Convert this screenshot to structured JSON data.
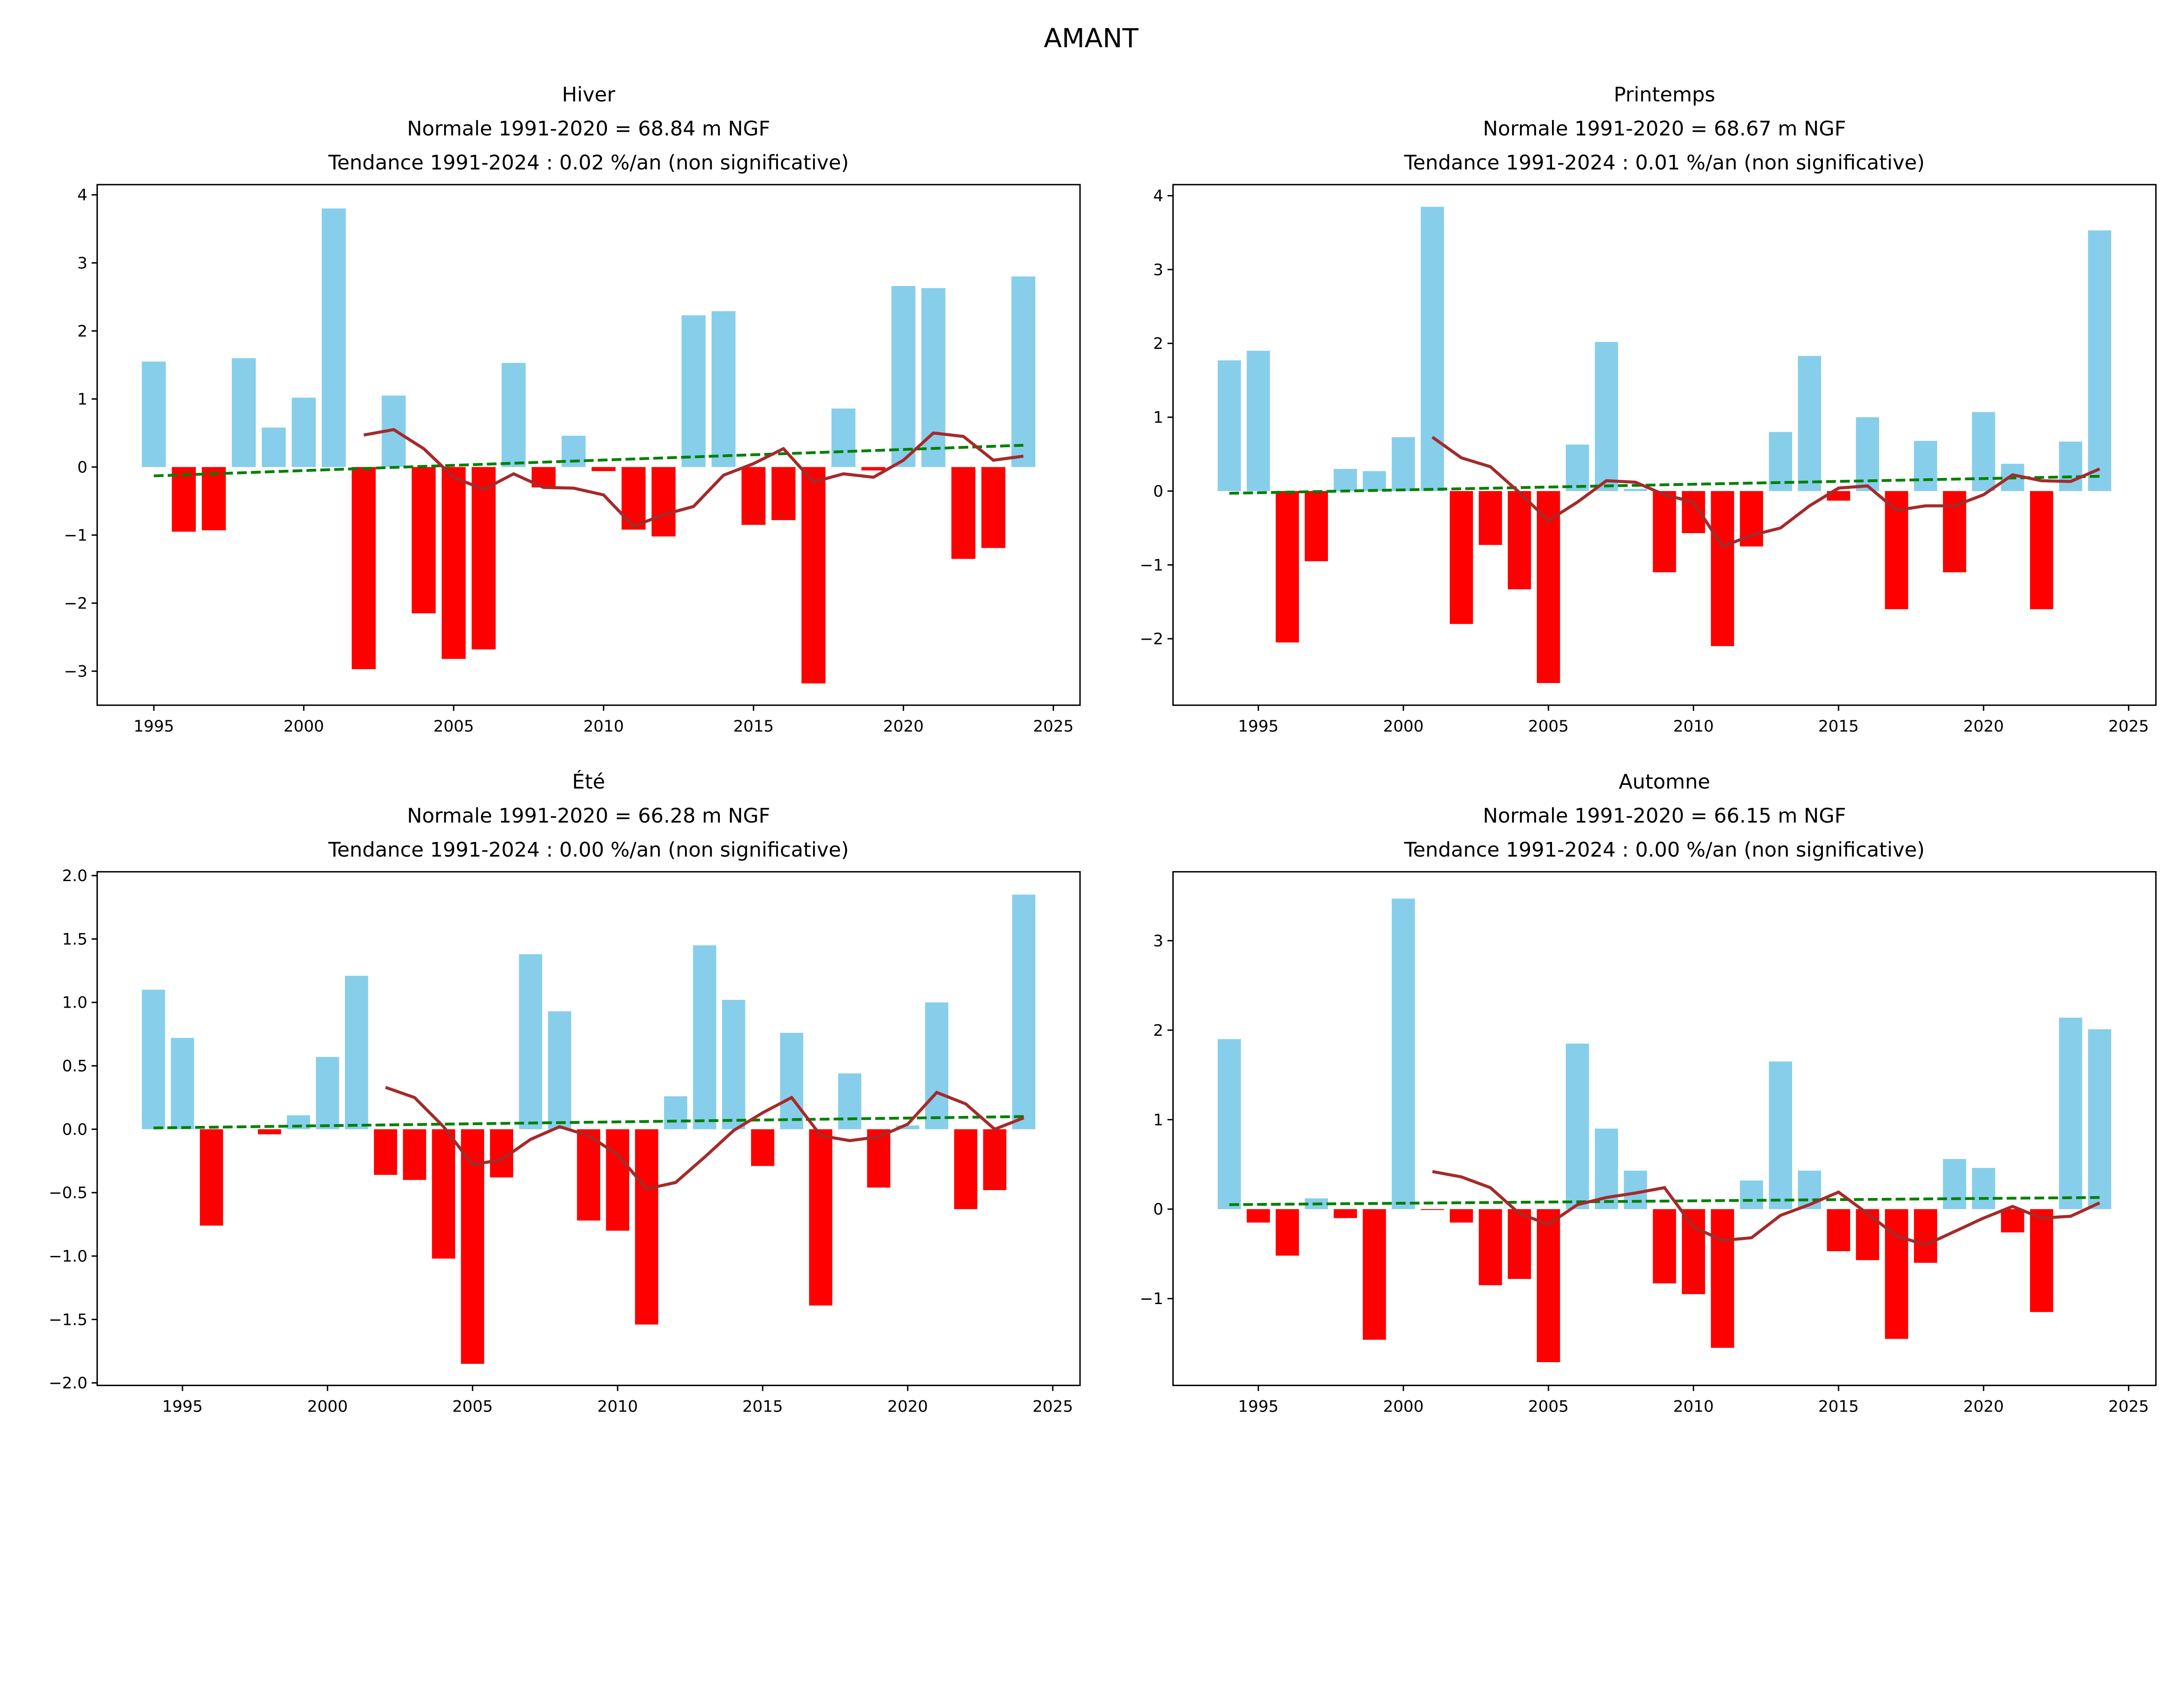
{
  "suptitle": "AMANT",
  "colors": {
    "positive": "#87CEEB",
    "negative": "#FF0000",
    "moving_average": "#A52A2A",
    "trend": "#008000"
  },
  "chart_data": [
    {
      "type": "bar",
      "title_lines": [
        "Hiver",
        "Normale 1991-2020 = 68.84 m NGF",
        "Tendance 1991-2024 : 0.02 %/an (non significative)"
      ],
      "years": [
        1995,
        1996,
        1997,
        1998,
        1999,
        2000,
        2001,
        2002,
        2003,
        2004,
        2005,
        2006,
        2007,
        2008,
        2009,
        2010,
        2011,
        2012,
        2013,
        2014,
        2015,
        2016,
        2017,
        2018,
        2019,
        2020,
        2021,
        2022,
        2023,
        2024
      ],
      "values": [
        1.55,
        -0.95,
        -0.93,
        1.6,
        0.58,
        1.02,
        3.8,
        -2.97,
        1.05,
        -2.15,
        -2.82,
        -2.68,
        1.53,
        -0.3,
        0.46,
        -0.06,
        -0.92,
        -1.02,
        2.23,
        2.29,
        -0.85,
        -0.78,
        -3.18,
        0.86,
        -0.05,
        2.66,
        2.63,
        -1.35,
        -1.19,
        2.8
      ],
      "moving_average": {
        "years": [
          2002,
          2003,
          2004,
          2005,
          2006,
          2007,
          2008,
          2009,
          2010,
          2011,
          2012,
          2013,
          2014,
          2015,
          2016,
          2017,
          2018,
          2019,
          2020,
          2021,
          2022,
          2023,
          2024
        ],
        "values": [
          0.47,
          0.55,
          0.27,
          -0.15,
          -0.33,
          -0.1,
          -0.3,
          -0.31,
          -0.41,
          -0.87,
          -0.7,
          -0.58,
          -0.12,
          0.05,
          0.27,
          -0.22,
          -0.1,
          -0.15,
          0.1,
          0.5,
          0.45,
          0.1,
          0.16
        ]
      },
      "trend": {
        "years": [
          1995,
          2024
        ],
        "values": [
          -0.13,
          0.32
        ]
      },
      "ylim": [
        -3.5,
        4.15
      ],
      "yticks": [
        -3,
        -2,
        -1,
        0,
        1,
        2,
        3,
        4
      ],
      "xticks": [
        1995,
        2000,
        2005,
        2010,
        2015,
        2020,
        2025
      ]
    },
    {
      "type": "bar",
      "title_lines": [
        "Printemps",
        "Normale 1991-2020 = 68.67 m NGF",
        "Tendance 1991-2024 : 0.01 %/an (non significative)"
      ],
      "years": [
        1994,
        1995,
        1996,
        1997,
        1998,
        1999,
        2000,
        2001,
        2002,
        2003,
        2004,
        2005,
        2006,
        2007,
        2008,
        2009,
        2010,
        2011,
        2012,
        2013,
        2014,
        2015,
        2016,
        2017,
        2018,
        2019,
        2020,
        2021,
        2022,
        2023,
        2024
      ],
      "values": [
        1.77,
        1.9,
        -2.05,
        -0.95,
        0.3,
        0.27,
        0.73,
        3.85,
        -1.8,
        -0.73,
        -1.33,
        -2.6,
        0.63,
        2.02,
        0.03,
        -1.1,
        -0.57,
        -2.1,
        -0.75,
        0.8,
        1.83,
        -0.13,
        1.0,
        -1.6,
        0.68,
        -1.1,
        1.07,
        0.37,
        -1.6,
        0.67,
        3.53
      ],
      "moving_average": {
        "years": [
          2001,
          2002,
          2003,
          2004,
          2005,
          2006,
          2007,
          2008,
          2009,
          2010,
          2011,
          2012,
          2013,
          2014,
          2015,
          2016,
          2017,
          2018,
          2019,
          2020,
          2021,
          2022,
          2023,
          2024
        ],
        "values": [
          0.73,
          0.45,
          0.33,
          -0.02,
          -0.4,
          -0.15,
          0.14,
          0.12,
          -0.05,
          -0.15,
          -0.75,
          -0.6,
          -0.5,
          -0.2,
          0.04,
          0.07,
          -0.26,
          -0.2,
          -0.2,
          -0.05,
          0.22,
          0.14,
          0.13,
          0.3
        ]
      },
      "trend": {
        "years": [
          1994,
          2024
        ],
        "values": [
          -0.03,
          0.2
        ]
      },
      "ylim": [
        -2.9,
        4.15
      ],
      "yticks": [
        -2,
        -1,
        0,
        1,
        2,
        3,
        4
      ],
      "xticks": [
        1995,
        2000,
        2005,
        2010,
        2015,
        2020,
        2025
      ]
    },
    {
      "type": "bar",
      "title_lines": [
        "Été",
        "Normale 1991-2020 = 66.28 m NGF",
        "Tendance 1991-2024 : 0.00 %/an (non significative)"
      ],
      "years": [
        1994,
        1995,
        1996,
        1997,
        1998,
        1999,
        2000,
        2001,
        2002,
        2003,
        2004,
        2005,
        2006,
        2007,
        2008,
        2009,
        2010,
        2011,
        2012,
        2013,
        2014,
        2015,
        2016,
        2017,
        2018,
        2019,
        2020,
        2021,
        2022,
        2023,
        2024
      ],
      "values": [
        1.1,
        0.72,
        -0.76,
        0,
        -0.04,
        0.11,
        0.57,
        1.21,
        -0.36,
        -0.4,
        -1.02,
        -1.85,
        -0.38,
        1.38,
        0.93,
        -0.72,
        -0.8,
        -1.54,
        0.26,
        1.45,
        1.02,
        -0.29,
        0.76,
        -1.39,
        0.44,
        -0.46,
        0.03,
        1.0,
        -0.63,
        -0.48,
        1.85
      ],
      "moving_average": {
        "years": [
          2002,
          2003,
          2004,
          2005,
          2006,
          2007,
          2008,
          2009,
          2010,
          2011,
          2012,
          2013,
          2014,
          2015,
          2016,
          2017,
          2018,
          2019,
          2020,
          2021,
          2022,
          2023,
          2024
        ],
        "values": [
          0.33,
          0.25,
          0.02,
          -0.28,
          -0.24,
          -0.08,
          0.02,
          -0.05,
          -0.2,
          -0.47,
          -0.42,
          -0.22,
          -0.01,
          0.13,
          0.25,
          -0.05,
          -0.09,
          -0.06,
          0.04,
          0.29,
          0.2,
          0.0,
          0.09
        ]
      },
      "trend": {
        "years": [
          1994,
          2024
        ],
        "values": [
          0.01,
          0.1
        ]
      },
      "ylim": [
        -2.02,
        2.03
      ],
      "yticks": [
        -2.0,
        -1.5,
        -1.0,
        -0.5,
        0.0,
        0.5,
        1.0,
        1.5,
        2.0
      ],
      "xticks": [
        1995,
        2000,
        2005,
        2010,
        2015,
        2020,
        2025
      ]
    },
    {
      "type": "bar",
      "title_lines": [
        "Automne",
        "Normale 1991-2020 = 66.15 m NGF",
        "Tendance 1991-2024 : 0.00 %/an (non significative)"
      ],
      "years": [
        1994,
        1995,
        1996,
        1997,
        1998,
        1999,
        2000,
        2001,
        2002,
        2003,
        2004,
        2005,
        2006,
        2007,
        2008,
        2009,
        2010,
        2011,
        2012,
        2013,
        2014,
        2015,
        2016,
        2017,
        2018,
        2019,
        2020,
        2021,
        2022,
        2023,
        2024
      ],
      "values": [
        1.9,
        -0.15,
        -0.52,
        0.12,
        -0.1,
        -1.46,
        3.47,
        -0.01,
        -0.15,
        -0.85,
        -0.78,
        -1.71,
        1.85,
        0.9,
        0.43,
        -0.83,
        -0.95,
        -1.55,
        0.32,
        1.65,
        0.43,
        -0.47,
        -0.57,
        -1.45,
        -0.6,
        0.56,
        0.46,
        -0.26,
        -1.15,
        2.14,
        2.01
      ],
      "moving_average": {
        "years": [
          2001,
          2002,
          2003,
          2004,
          2005,
          2006,
          2007,
          2008,
          2009,
          2010,
          2011,
          2012,
          2013,
          2014,
          2015,
          2016,
          2017,
          2018,
          2019,
          2020,
          2021,
          2022,
          2023,
          2024
        ],
        "values": [
          0.42,
          0.36,
          0.24,
          -0.05,
          -0.17,
          0.05,
          0.13,
          0.18,
          0.24,
          -0.2,
          -0.35,
          -0.32,
          -0.07,
          0.05,
          0.19,
          -0.05,
          -0.3,
          -0.4,
          -0.25,
          -0.1,
          0.03,
          -0.1,
          -0.08,
          0.07
        ]
      },
      "trend": {
        "years": [
          1994,
          2024
        ],
        "values": [
          0.05,
          0.13
        ]
      },
      "ylim": [
        -1.97,
        3.77
      ],
      "yticks": [
        -1,
        0,
        1,
        2,
        3
      ],
      "xticks": [
        1995,
        2000,
        2005,
        2010,
        2015,
        2020,
        2025
      ]
    }
  ]
}
